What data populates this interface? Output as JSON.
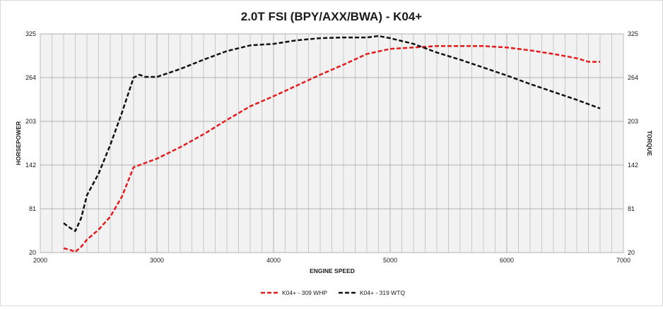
{
  "chart_data": {
    "type": "line",
    "title": "2.0T FSI (BPY/AXX/BWA) - K04+",
    "xlabel": "ENGINE SPEED",
    "ylabel_left": "HORSEPOWER",
    "ylabel_right": "TORQUE",
    "xlim": [
      2000,
      7000
    ],
    "ylim": [
      20,
      325
    ],
    "x_ticks": [
      "2000",
      "3000",
      "4000",
      "5000",
      "6000",
      "7000"
    ],
    "y_ticks": [
      "20",
      "81",
      "142",
      "203",
      "264",
      "325"
    ],
    "grid": true,
    "legend_position": "bottom-center",
    "series": [
      {
        "name": "K04+ - 309 WHP",
        "color": "#e41a1c",
        "points": [
          [
            2200,
            26
          ],
          [
            2250,
            24
          ],
          [
            2300,
            21
          ],
          [
            2350,
            28
          ],
          [
            2400,
            38
          ],
          [
            2500,
            52
          ],
          [
            2600,
            70
          ],
          [
            2700,
            98
          ],
          [
            2800,
            139
          ],
          [
            2900,
            145
          ],
          [
            3000,
            151
          ],
          [
            3200,
            167
          ],
          [
            3400,
            185
          ],
          [
            3600,
            205
          ],
          [
            3800,
            224
          ],
          [
            4000,
            238
          ],
          [
            4200,
            253
          ],
          [
            4400,
            268
          ],
          [
            4600,
            282
          ],
          [
            4800,
            297
          ],
          [
            5000,
            304
          ],
          [
            5200,
            306
          ],
          [
            5400,
            308
          ],
          [
            5600,
            308
          ],
          [
            5800,
            308
          ],
          [
            6000,
            306
          ],
          [
            6200,
            302
          ],
          [
            6400,
            297
          ],
          [
            6600,
            291
          ],
          [
            6700,
            286
          ],
          [
            6800,
            286
          ]
        ]
      },
      {
        "name": "K04+ - 319 WTQ",
        "color": "#111111",
        "points": [
          [
            2200,
            61
          ],
          [
            2250,
            55
          ],
          [
            2300,
            50
          ],
          [
            2350,
            68
          ],
          [
            2400,
            100
          ],
          [
            2500,
            130
          ],
          [
            2600,
            170
          ],
          [
            2700,
            215
          ],
          [
            2800,
            264
          ],
          [
            2850,
            268
          ],
          [
            2900,
            265
          ],
          [
            3000,
            265
          ],
          [
            3200,
            276
          ],
          [
            3400,
            289
          ],
          [
            3600,
            301
          ],
          [
            3800,
            309
          ],
          [
            4000,
            311
          ],
          [
            4200,
            316
          ],
          [
            4400,
            319
          ],
          [
            4600,
            320
          ],
          [
            4800,
            320
          ],
          [
            4900,
            322
          ],
          [
            5000,
            319
          ],
          [
            5200,
            311
          ],
          [
            5400,
            299
          ],
          [
            5600,
            289
          ],
          [
            5800,
            278
          ],
          [
            6000,
            267
          ],
          [
            6200,
            255
          ],
          [
            6400,
            244
          ],
          [
            6600,
            233
          ],
          [
            6800,
            221
          ]
        ]
      }
    ]
  }
}
